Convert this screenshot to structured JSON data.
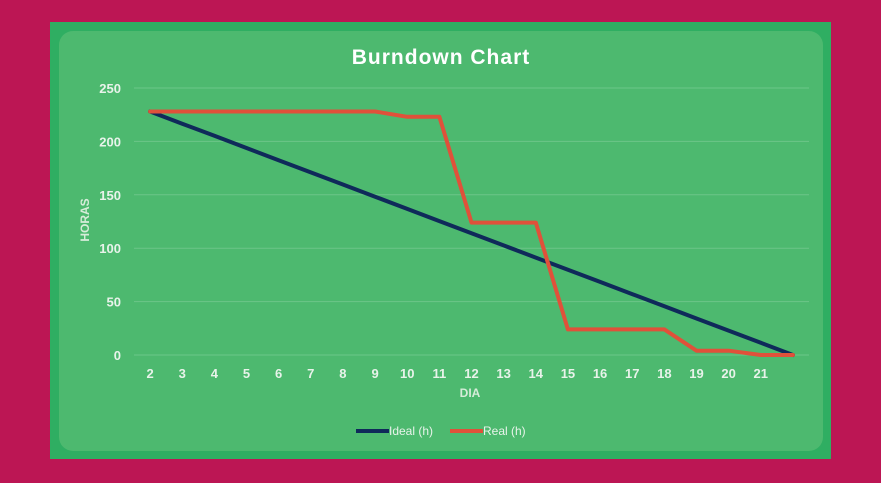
{
  "colors": {
    "background": "#bc1654",
    "frame": "#2fae62",
    "panel": "#4db96f",
    "ideal": "#0f2a5a",
    "real": "#e0513a",
    "gridline": "#6cc688"
  },
  "chart_data": {
    "type": "line",
    "title": "Burndown Chart",
    "xlabel": "DIA",
    "ylabel": "HORAS",
    "ylim": [
      0,
      250
    ],
    "yticks": [
      0,
      50,
      100,
      150,
      200,
      250
    ],
    "categories": [
      "2",
      "3",
      "4",
      "5",
      "6",
      "7",
      "8",
      "9",
      "10",
      "11",
      "12",
      "13",
      "14",
      "15",
      "16",
      "17",
      "18",
      "19",
      "20",
      "21"
    ],
    "grid": true,
    "legend_position": "bottom",
    "series": [
      {
        "name": "Ideal (h)",
        "color": "#0f2a5a",
        "x": [
          2,
          3,
          4,
          5,
          6,
          7,
          8,
          9,
          10,
          11,
          12,
          13,
          14,
          15,
          16,
          17,
          18,
          19,
          20,
          21,
          22
        ],
        "values": [
          228,
          216.6,
          205.2,
          193.8,
          182.4,
          171,
          159.6,
          148.2,
          136.8,
          125.4,
          114,
          102.6,
          91.2,
          79.8,
          68.4,
          57,
          45.6,
          34.2,
          22.8,
          11.4,
          0
        ]
      },
      {
        "name": "Real (h)",
        "color": "#e0513a",
        "x": [
          2,
          3,
          4,
          5,
          6,
          7,
          8,
          9,
          10,
          11,
          12,
          13,
          14,
          15,
          16,
          17,
          18,
          19,
          20,
          21,
          22
        ],
        "values": [
          228,
          228,
          228,
          228,
          228,
          228,
          228,
          228,
          223,
          223,
          124,
          124,
          124,
          24,
          24,
          24,
          24,
          4,
          4,
          0,
          0
        ]
      }
    ]
  }
}
